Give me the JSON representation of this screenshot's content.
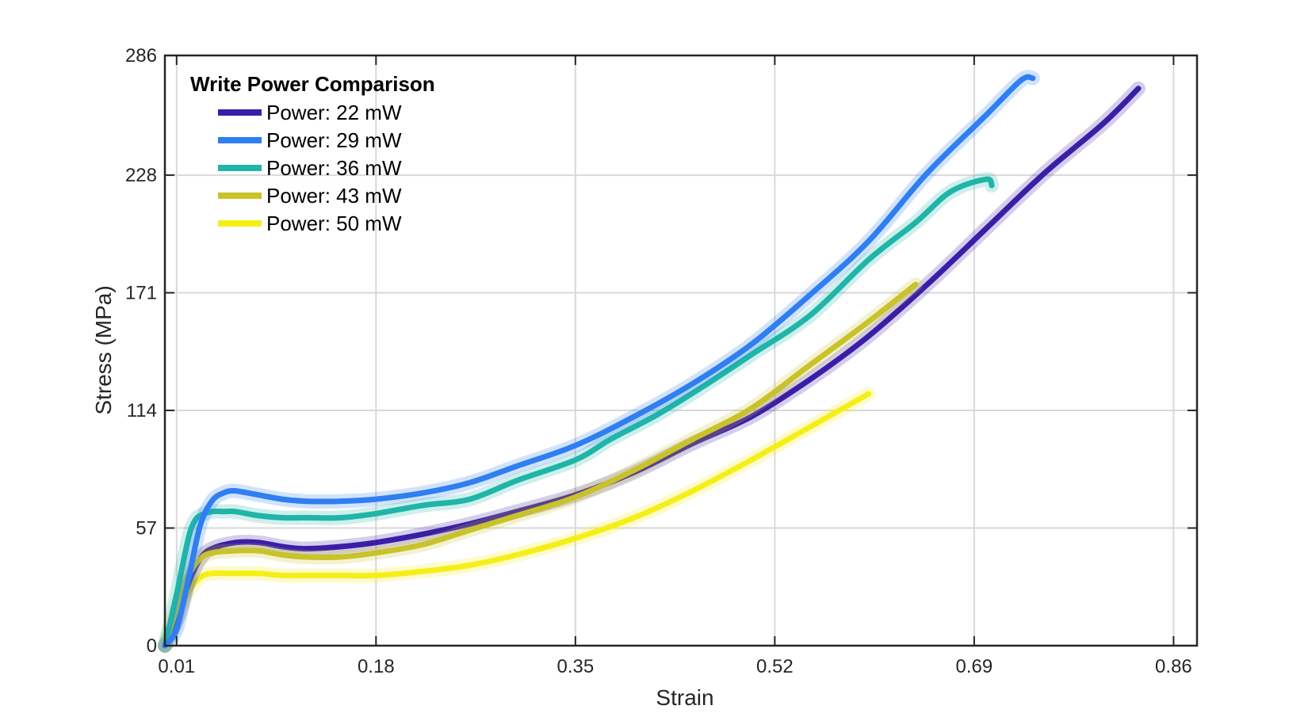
{
  "chart_data": {
    "type": "line",
    "xlabel": "Strain",
    "ylabel": "Stress (MPa)",
    "xlim": [
      0.0,
      0.88
    ],
    "ylim": [
      0,
      286
    ],
    "xticks": [
      0.01,
      0.18,
      0.35,
      0.52,
      0.69,
      0.86
    ],
    "xtick_labels": [
      "0.01",
      "0.18",
      "0.35",
      "0.52",
      "0.69",
      "0.86"
    ],
    "yticks": [
      0,
      57,
      114,
      171,
      228,
      286
    ],
    "ytick_labels": [
      "0",
      "57",
      "114",
      "171",
      "228",
      "286"
    ],
    "grid": true,
    "legend": {
      "title": "Write Power Comparison",
      "position": "top-left"
    },
    "series": [
      {
        "name": "Power: 22 mW",
        "color": "#3a1ea8",
        "x": [
          0.0,
          0.01,
          0.02,
          0.03,
          0.04,
          0.06,
          0.08,
          0.1,
          0.12,
          0.15,
          0.18,
          0.22,
          0.26,
          0.3,
          0.35,
          0.4,
          0.45,
          0.5,
          0.55,
          0.6,
          0.65,
          0.7,
          0.75,
          0.8,
          0.83
        ],
        "y": [
          0,
          12,
          30,
          42,
          47,
          50,
          50,
          48,
          47,
          48,
          50,
          54,
          59,
          65,
          73,
          84,
          98,
          111,
          129,
          150,
          175,
          202,
          229,
          253,
          270
        ]
      },
      {
        "name": "Power: 29 mW",
        "color": "#2f7ef2",
        "x": [
          0.0,
          0.01,
          0.02,
          0.03,
          0.04,
          0.05,
          0.06,
          0.08,
          0.1,
          0.12,
          0.15,
          0.18,
          0.22,
          0.26,
          0.3,
          0.35,
          0.4,
          0.45,
          0.5,
          0.55,
          0.6,
          0.65,
          0.7,
          0.73,
          0.74
        ],
        "y": [
          0,
          8,
          32,
          58,
          70,
          74,
          75,
          73,
          71,
          70,
          70,
          71,
          74,
          79,
          87,
          97,
          111,
          127,
          146,
          170,
          196,
          229,
          257,
          274,
          275
        ]
      },
      {
        "name": "Power: 36 mW",
        "color": "#1fb5a8",
        "x": [
          0.0,
          0.01,
          0.02,
          0.025,
          0.03,
          0.04,
          0.05,
          0.06,
          0.08,
          0.1,
          0.12,
          0.15,
          0.18,
          0.22,
          0.26,
          0.3,
          0.35,
          0.38,
          0.42,
          0.46,
          0.5,
          0.55,
          0.6,
          0.64,
          0.67,
          0.7,
          0.705
        ],
        "y": [
          0,
          25,
          52,
          60,
          63,
          65,
          65,
          65,
          63,
          62,
          62,
          62,
          64,
          68,
          71,
          80,
          90,
          100,
          112,
          126,
          141,
          160,
          187,
          205,
          220,
          226,
          223
        ]
      },
      {
        "name": "Power: 43 mW",
        "color": "#c9c22a",
        "x": [
          0.0,
          0.01,
          0.02,
          0.03,
          0.04,
          0.06,
          0.08,
          0.1,
          0.12,
          0.15,
          0.18,
          0.22,
          0.26,
          0.3,
          0.35,
          0.4,
          0.45,
          0.5,
          0.55,
          0.6,
          0.64
        ],
        "y": [
          0,
          18,
          34,
          42,
          45,
          46,
          46,
          44,
          43,
          43,
          45,
          49,
          56,
          63,
          72,
          85,
          100,
          115,
          136,
          157,
          175
        ]
      },
      {
        "name": "Power: 50 mW",
        "color": "#f5ef18",
        "x": [
          0.0,
          0.01,
          0.02,
          0.03,
          0.04,
          0.06,
          0.08,
          0.1,
          0.12,
          0.15,
          0.18,
          0.22,
          0.26,
          0.3,
          0.35,
          0.4,
          0.45,
          0.5,
          0.55,
          0.6
        ],
        "y": [
          0,
          12,
          26,
          33,
          35,
          35,
          35,
          34,
          34,
          34,
          34,
          36,
          39,
          44,
          52,
          62,
          75,
          90,
          106,
          122
        ]
      }
    ]
  }
}
